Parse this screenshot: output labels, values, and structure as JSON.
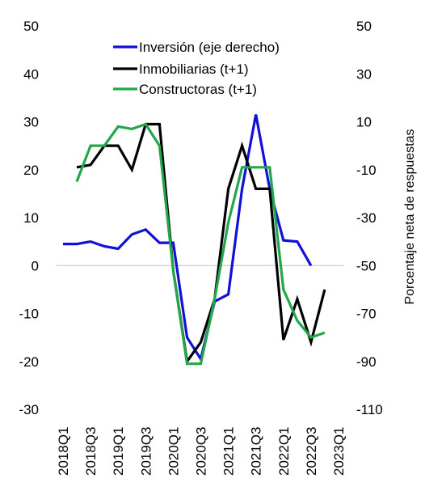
{
  "chart_data": {
    "type": "line",
    "categories": [
      "2018Q1",
      "2018Q2",
      "2018Q3",
      "2018Q4",
      "2019Q1",
      "2019Q2",
      "2019Q3",
      "2019Q4",
      "2020Q1",
      "2020Q2",
      "2020Q3",
      "2020Q4",
      "2021Q1",
      "2021Q2",
      "2021Q3",
      "2021Q4",
      "2022Q1",
      "2022Q2",
      "2022Q3",
      "2022Q4",
      "2023Q1"
    ],
    "x_tick_labels": [
      "2018Q1",
      "2018Q3",
      "2019Q1",
      "2019Q3",
      "2020Q1",
      "2020Q3",
      "2021Q1",
      "2021Q3",
      "2022Q1",
      "2022Q3",
      "2023Q1"
    ],
    "y_left": {
      "ticks": [
        50,
        40,
        30,
        20,
        10,
        0,
        -10,
        -20,
        -30
      ],
      "ylim": [
        -30,
        50
      ]
    },
    "y_right": {
      "ticks": [
        50,
        30,
        10,
        -10,
        -30,
        -50,
        -70,
        -90,
        -110
      ],
      "ylim": [
        -110,
        50
      ],
      "label": "Porcentaje neta de respuestas"
    },
    "series": [
      {
        "name": "Inversión (eje derecho)",
        "color": "#1010d8",
        "axis": "right",
        "values": [
          -41,
          -41,
          -40,
          -42,
          -43,
          -37,
          -35,
          -40.5,
          -40.5,
          -80,
          -89,
          -65,
          -62,
          -18,
          13,
          -18,
          -39.5,
          -40,
          -50,
          null,
          null
        ]
      },
      {
        "name": "Inmobiliarias (t+1)",
        "color": "#000000",
        "axis": "left",
        "values": [
          null,
          20.5,
          21,
          25,
          25,
          20,
          29.5,
          29.5,
          -1,
          -20,
          -16,
          -7,
          16,
          25,
          16,
          16,
          -15.5,
          -7,
          -16,
          -5,
          null
        ]
      },
      {
        "name": "Constructoras (t+1)",
        "color": "#22a84a",
        "axis": "left",
        "values": [
          null,
          17.5,
          25,
          25,
          29,
          28.5,
          29.5,
          25,
          -1,
          -20.5,
          -20.5,
          -7,
          9,
          20.5,
          20.5,
          20.5,
          -5,
          -11.5,
          -15,
          -14,
          null
        ]
      }
    ],
    "legend_position": "top-center",
    "grid": false
  }
}
